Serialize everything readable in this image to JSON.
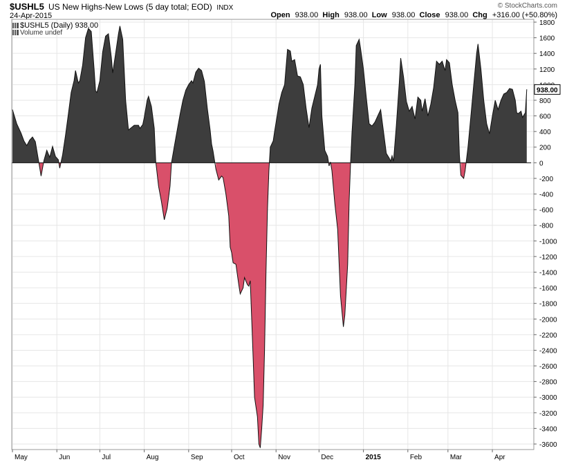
{
  "header": {
    "symbol": "$USHL5",
    "name": "US New Highs-New Lows (5 day total; EOD)",
    "exchange": "INDX",
    "date": "24-Apr-2015",
    "watermark": "© StockCharts.com",
    "quote": {
      "open_label": "Open",
      "open": "938.00",
      "high_label": "High",
      "high": "938.00",
      "low_label": "Low",
      "low": "938.00",
      "close_label": "Close",
      "close": "938.00",
      "chg_label": "Chg",
      "chg": "+316.00 (+50.80%)"
    }
  },
  "legend": {
    "series_label": "$USHL5 (Daily) 938.00",
    "volume_label": "Volume undef"
  },
  "chart_data": {
    "type": "area",
    "title": "$USHL5 US New Highs-New Lows (5 day total; EOD)",
    "xlabel": "",
    "ylabel": "",
    "ylim": [
      -3700,
      1800
    ],
    "yticks": [
      1800,
      1600,
      1400,
      1200,
      1000,
      800,
      600,
      400,
      200,
      0,
      -200,
      -400,
      -600,
      -800,
      -1000,
      -1200,
      -1400,
      -1600,
      -1800,
      -2000,
      -2200,
      -2400,
      -2600,
      -2800,
      -3000,
      -3200,
      -3400,
      -3600
    ],
    "xticks": [
      {
        "label": "May",
        "day": 0
      },
      {
        "label": "Jun",
        "day": 31
      },
      {
        "label": "Jul",
        "day": 61
      },
      {
        "label": "Aug",
        "day": 92
      },
      {
        "label": "Sep",
        "day": 123
      },
      {
        "label": "Oct",
        "day": 153
      },
      {
        "label": "Nov",
        "day": 184
      },
      {
        "label": "Dec",
        "day": 214
      },
      {
        "label": "2015",
        "day": 245,
        "bold": true
      },
      {
        "label": "Feb",
        "day": 276
      },
      {
        "label": "Mar",
        "day": 304
      },
      {
        "label": "Apr",
        "day": 335
      }
    ],
    "x_range_days": [
      0,
      362
    ],
    "last_value_label": "938.00",
    "last_value": 938,
    "positive_color": "#3d3d3d",
    "negative_color": "#d9506a",
    "points": [
      [
        0,
        680
      ],
      [
        3,
        500
      ],
      [
        6,
        380
      ],
      [
        8,
        280
      ],
      [
        10,
        220
      ],
      [
        12,
        290
      ],
      [
        14,
        330
      ],
      [
        16,
        270
      ],
      [
        18,
        50
      ],
      [
        20,
        -170
      ],
      [
        22,
        30
      ],
      [
        24,
        160
      ],
      [
        26,
        70
      ],
      [
        28,
        210
      ],
      [
        30,
        80
      ],
      [
        32,
        40
      ],
      [
        33,
        -70
      ],
      [
        35,
        100
      ],
      [
        37,
        350
      ],
      [
        39,
        620
      ],
      [
        41,
        900
      ],
      [
        43,
        1050
      ],
      [
        44,
        1180
      ],
      [
        46,
        1020
      ],
      [
        47,
        1050
      ],
      [
        49,
        1250
      ],
      [
        51,
        1600
      ],
      [
        53,
        1720
      ],
      [
        55,
        1680
      ],
      [
        57,
        1200
      ],
      [
        58,
        920
      ],
      [
        59,
        900
      ],
      [
        61,
        1050
      ],
      [
        63,
        1420
      ],
      [
        65,
        1620
      ],
      [
        67,
        1650
      ],
      [
        69,
        1350
      ],
      [
        70,
        1150
      ],
      [
        72,
        1400
      ],
      [
        74,
        1650
      ],
      [
        75,
        1750
      ],
      [
        77,
        1580
      ],
      [
        79,
        800
      ],
      [
        81,
        420
      ],
      [
        83,
        450
      ],
      [
        85,
        480
      ],
      [
        88,
        480
      ],
      [
        89,
        440
      ],
      [
        91,
        490
      ],
      [
        92,
        580
      ],
      [
        94,
        800
      ],
      [
        95,
        850
      ],
      [
        97,
        720
      ],
      [
        99,
        440
      ],
      [
        100,
        20
      ],
      [
        102,
        -300
      ],
      [
        104,
        -500
      ],
      [
        106,
        -730
      ],
      [
        108,
        -580
      ],
      [
        110,
        -300
      ],
      [
        111,
        0
      ],
      [
        113,
        210
      ],
      [
        115,
        420
      ],
      [
        117,
        620
      ],
      [
        119,
        800
      ],
      [
        121,
        930
      ],
      [
        123,
        1000
      ],
      [
        125,
        1050
      ],
      [
        126,
        1020
      ],
      [
        128,
        1160
      ],
      [
        130,
        1210
      ],
      [
        132,
        1180
      ],
      [
        134,
        1040
      ],
      [
        136,
        700
      ],
      [
        138,
        420
      ],
      [
        139,
        240
      ],
      [
        140,
        150
      ],
      [
        142,
        -80
      ],
      [
        144,
        -220
      ],
      [
        146,
        -170
      ],
      [
        147,
        -190
      ],
      [
        149,
        -400
      ],
      [
        151,
        -680
      ],
      [
        152,
        -1080
      ],
      [
        153,
        -1150
      ],
      [
        154,
        -1280
      ],
      [
        156,
        -1300
      ],
      [
        158,
        -1560
      ],
      [
        159,
        -1680
      ],
      [
        161,
        -1600
      ],
      [
        162,
        -1470
      ],
      [
        164,
        -1560
      ],
      [
        165,
        -1580
      ],
      [
        166,
        -1510
      ],
      [
        167,
        -2000
      ],
      [
        168,
        -2500
      ],
      [
        169,
        -3000
      ],
      [
        171,
        -3250
      ],
      [
        172,
        -3600
      ],
      [
        173,
        -3650
      ],
      [
        174,
        -3400
      ],
      [
        175,
        -3100
      ],
      [
        176,
        -2400
      ],
      [
        177,
        -1400
      ],
      [
        178,
        -600
      ],
      [
        179,
        -100
      ],
      [
        180,
        200
      ],
      [
        182,
        280
      ],
      [
        183,
        400
      ],
      [
        185,
        630
      ],
      [
        186,
        750
      ],
      [
        188,
        900
      ],
      [
        190,
        1000
      ],
      [
        192,
        1450
      ],
      [
        194,
        1430
      ],
      [
        195,
        1300
      ],
      [
        197,
        1320
      ],
      [
        199,
        1110
      ],
      [
        201,
        1100
      ],
      [
        203,
        1000
      ],
      [
        205,
        700
      ],
      [
        207,
        450
      ],
      [
        209,
        700
      ],
      [
        211,
        850
      ],
      [
        213,
        1000
      ],
      [
        214,
        1200
      ],
      [
        215,
        1260
      ],
      [
        216,
        600
      ],
      [
        218,
        160
      ],
      [
        220,
        80
      ],
      [
        221,
        -40
      ],
      [
        222,
        10
      ],
      [
        223,
        -100
      ],
      [
        225,
        -520
      ],
      [
        227,
        -850
      ],
      [
        229,
        -1700
      ],
      [
        231,
        -2100
      ],
      [
        232,
        -1950
      ],
      [
        234,
        -1300
      ],
      [
        235,
        -500
      ],
      [
        236,
        0
      ],
      [
        237,
        380
      ],
      [
        239,
        1000
      ],
      [
        240,
        1500
      ],
      [
        242,
        1580
      ],
      [
        243,
        1460
      ],
      [
        245,
        1200
      ],
      [
        247,
        840
      ],
      [
        249,
        500
      ],
      [
        251,
        470
      ],
      [
        253,
        520
      ],
      [
        255,
        600
      ],
      [
        257,
        680
      ],
      [
        259,
        400
      ],
      [
        261,
        120
      ],
      [
        263,
        60
      ],
      [
        264,
        20
      ],
      [
        265,
        90
      ],
      [
        266,
        20
      ],
      [
        268,
        480
      ],
      [
        270,
        1020
      ],
      [
        271,
        1340
      ],
      [
        273,
        1100
      ],
      [
        275,
        780
      ],
      [
        277,
        660
      ],
      [
        279,
        720
      ],
      [
        281,
        560
      ],
      [
        283,
        840
      ],
      [
        285,
        800
      ],
      [
        286,
        660
      ],
      [
        288,
        820
      ],
      [
        290,
        600
      ],
      [
        292,
        750
      ],
      [
        294,
        960
      ],
      [
        296,
        1300
      ],
      [
        298,
        1260
      ],
      [
        300,
        1300
      ],
      [
        302,
        1180
      ],
      [
        303,
        1320
      ],
      [
        305,
        1280
      ],
      [
        307,
        1000
      ],
      [
        309,
        800
      ],
      [
        311,
        640
      ],
      [
        312,
        100
      ],
      [
        313,
        -160
      ],
      [
        315,
        -200
      ],
      [
        316,
        -100
      ],
      [
        318,
        200
      ],
      [
        320,
        600
      ],
      [
        322,
        1000
      ],
      [
        324,
        1400
      ],
      [
        325,
        1520
      ],
      [
        327,
        1200
      ],
      [
        329,
        800
      ],
      [
        331,
        500
      ],
      [
        333,
        370
      ],
      [
        335,
        600
      ],
      [
        337,
        800
      ],
      [
        339,
        680
      ],
      [
        341,
        800
      ],
      [
        343,
        880
      ],
      [
        345,
        900
      ],
      [
        347,
        950
      ],
      [
        349,
        940
      ],
      [
        351,
        800
      ],
      [
        352,
        640
      ],
      [
        353,
        630
      ],
      [
        355,
        660
      ],
      [
        356,
        580
      ],
      [
        358,
        640
      ],
      [
        359,
        940
      ]
    ]
  }
}
